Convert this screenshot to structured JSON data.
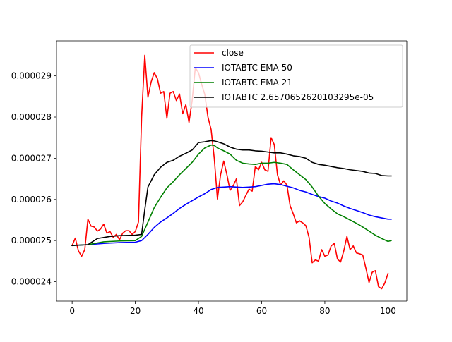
{
  "chart_data": {
    "type": "line",
    "title": "",
    "xlabel": "",
    "ylabel": "",
    "xlim": [
      -4.95,
      105.95
    ],
    "ylim": [
      2.353e-05,
      2.985e-05
    ],
    "grid": false,
    "legend_position": "upper-right",
    "x_ticks": [
      0,
      20,
      40,
      60,
      80,
      100
    ],
    "x_tick_labels": [
      "0",
      "20",
      "40",
      "60",
      "80",
      "100"
    ],
    "y_ticks": [
      2.4e-05,
      2.5e-05,
      2.6e-05,
      2.7e-05,
      2.8e-05,
      2.9e-05
    ],
    "y_tick_labels": [
      "0.000024",
      "0.000025",
      "0.000026",
      "0.000027",
      "0.000028",
      "0.000029"
    ],
    "series": [
      {
        "name": "close",
        "color": "#ff0000",
        "x": [
          0,
          1,
          2,
          3,
          4,
          5,
          6,
          7,
          8,
          9,
          10,
          11,
          12,
          13,
          14,
          15,
          16,
          17,
          18,
          19,
          20,
          21,
          22,
          23,
          24,
          25,
          26,
          27,
          28,
          29,
          30,
          31,
          32,
          33,
          34,
          35,
          36,
          37,
          38,
          39,
          40,
          41,
          42,
          43,
          44,
          45,
          46,
          47,
          48,
          49,
          50,
          51,
          52,
          53,
          54,
          55,
          56,
          57,
          58,
          59,
          60,
          61,
          62,
          63,
          64,
          65,
          66,
          67,
          68,
          69,
          70,
          71,
          72,
          73,
          74,
          75,
          76,
          77,
          78,
          79,
          80,
          81,
          82,
          83,
          84,
          85,
          86,
          87,
          88,
          89,
          90,
          91,
          92,
          93,
          94,
          95,
          96,
          97,
          98,
          99,
          100
        ],
        "values": [
          2.488e-05,
          2.506e-05,
          2.475e-05,
          2.462e-05,
          2.478e-05,
          2.552e-05,
          2.535e-05,
          2.533e-05,
          2.523e-05,
          2.528e-05,
          2.54e-05,
          2.518e-05,
          2.522e-05,
          2.508e-05,
          2.515e-05,
          2.502e-05,
          2.518e-05,
          2.524e-05,
          2.524e-05,
          2.515e-05,
          2.522e-05,
          2.545e-05,
          2.8e-05,
          2.95e-05,
          2.848e-05,
          2.885e-05,
          2.908e-05,
          2.893e-05,
          2.858e-05,
          2.862e-05,
          2.797e-05,
          2.858e-05,
          2.862e-05,
          2.84e-05,
          2.856e-05,
          2.808e-05,
          2.83e-05,
          2.787e-05,
          2.84e-05,
          2.92e-05,
          2.908e-05,
          2.88e-05,
          2.855e-05,
          2.8e-05,
          2.77e-05,
          2.7e-05,
          2.601e-05,
          2.66e-05,
          2.693e-05,
          2.66e-05,
          2.622e-05,
          2.633e-05,
          2.65e-05,
          2.585e-05,
          2.594e-05,
          2.61e-05,
          2.625e-05,
          2.62e-05,
          2.68e-05,
          2.672e-05,
          2.69e-05,
          2.672e-05,
          2.668e-05,
          2.75e-05,
          2.733e-05,
          2.66e-05,
          2.635e-05,
          2.645e-05,
          2.635e-05,
          2.585e-05,
          2.565e-05,
          2.543e-05,
          2.548e-05,
          2.543e-05,
          2.536e-05,
          2.508e-05,
          2.446e-05,
          2.453e-05,
          2.45e-05,
          2.478e-05,
          2.462e-05,
          2.465e-05,
          2.487e-05,
          2.493e-05,
          2.455e-05,
          2.448e-05,
          2.475e-05,
          2.51e-05,
          2.478e-05,
          2.487e-05,
          2.47e-05,
          2.468e-05,
          2.465e-05,
          2.433e-05,
          2.398e-05,
          2.423e-05,
          2.427e-05,
          2.388e-05,
          2.383e-05,
          2.397e-05,
          2.42e-05
        ]
      },
      {
        "name": "IOTABTC EMA 50",
        "color": "#0000ff",
        "x": [
          0,
          5,
          10,
          15,
          20,
          22,
          24,
          26,
          28,
          30,
          32,
          34,
          36,
          38,
          40,
          42,
          44,
          46,
          48,
          50,
          52,
          54,
          56,
          58,
          60,
          62,
          64,
          66,
          68,
          70,
          72,
          74,
          76,
          78,
          80,
          82,
          84,
          86,
          88,
          90,
          92,
          94,
          96,
          98,
          100,
          101
        ],
        "values": [
          2.488e-05,
          2.49e-05,
          2.493e-05,
          2.495e-05,
          2.496e-05,
          2.5e-05,
          2.515e-05,
          2.532e-05,
          2.545e-05,
          2.555e-05,
          2.566e-05,
          2.578e-05,
          2.588e-05,
          2.597e-05,
          2.606e-05,
          2.614e-05,
          2.624e-05,
          2.629e-05,
          2.63e-05,
          2.631e-05,
          2.63e-05,
          2.629e-05,
          2.63e-05,
          2.631e-05,
          2.634e-05,
          2.637e-05,
          2.638e-05,
          2.636e-05,
          2.632e-05,
          2.628e-05,
          2.622e-05,
          2.618e-05,
          2.612e-05,
          2.607e-05,
          2.603e-05,
          2.596e-05,
          2.591e-05,
          2.584e-05,
          2.578e-05,
          2.573e-05,
          2.568e-05,
          2.562e-05,
          2.558e-05,
          2.555e-05,
          2.552e-05,
          2.552e-05
        ]
      },
      {
        "name": "IOTABTC EMA 21",
        "color": "#008000",
        "x": [
          0,
          5,
          10,
          15,
          20,
          22,
          24,
          26,
          28,
          30,
          32,
          34,
          36,
          38,
          40,
          42,
          44,
          45,
          46,
          48,
          50,
          52,
          54,
          56,
          58,
          60,
          62,
          64,
          66,
          68,
          70,
          72,
          74,
          76,
          78,
          80,
          82,
          84,
          86,
          88,
          90,
          92,
          94,
          96,
          98,
          100,
          101
        ],
        "values": [
          2.488e-05,
          2.49e-05,
          2.497e-05,
          2.499e-05,
          2.5e-05,
          2.51e-05,
          2.545e-05,
          2.58e-05,
          2.605e-05,
          2.628e-05,
          2.643e-05,
          2.66e-05,
          2.675e-05,
          2.69e-05,
          2.71e-05,
          2.725e-05,
          2.732e-05,
          2.731e-05,
          2.725e-05,
          2.718e-05,
          2.71e-05,
          2.695e-05,
          2.688e-05,
          2.686e-05,
          2.685e-05,
          2.688e-05,
          2.688e-05,
          2.69e-05,
          2.688e-05,
          2.685e-05,
          2.672e-05,
          2.66e-05,
          2.648e-05,
          2.63e-05,
          2.608e-05,
          2.59e-05,
          2.577e-05,
          2.565e-05,
          2.558e-05,
          2.55e-05,
          2.542e-05,
          2.533e-05,
          2.523e-05,
          2.513e-05,
          2.505e-05,
          2.498e-05,
          2.5e-05
        ]
      },
      {
        "name": "IOTABTC 2.6570652620103295e-05",
        "color": "#000000",
        "x": [
          0,
          5,
          8,
          12,
          15,
          20,
          22,
          23,
          24,
          26,
          28,
          30,
          32,
          34,
          36,
          38,
          40,
          42,
          44,
          45,
          46,
          48,
          50,
          52,
          54,
          56,
          58,
          60,
          62,
          64,
          66,
          68,
          70,
          72,
          74,
          76,
          78,
          80,
          82,
          84,
          86,
          88,
          90,
          92,
          94,
          96,
          98,
          100,
          101
        ],
        "values": [
          2.488e-05,
          2.49e-05,
          2.505e-05,
          2.51e-05,
          2.512e-05,
          2.513e-05,
          2.515e-05,
          2.575e-05,
          2.63e-05,
          2.66e-05,
          2.678e-05,
          2.69e-05,
          2.695e-05,
          2.705e-05,
          2.712e-05,
          2.72e-05,
          2.738e-05,
          2.74e-05,
          2.743e-05,
          2.742e-05,
          2.74e-05,
          2.735e-05,
          2.727e-05,
          2.722e-05,
          2.72e-05,
          2.72e-05,
          2.718e-05,
          2.717e-05,
          2.715e-05,
          2.713e-05,
          2.713e-05,
          2.71e-05,
          2.706e-05,
          2.704e-05,
          2.7e-05,
          2.69e-05,
          2.685e-05,
          2.683e-05,
          2.68e-05,
          2.677e-05,
          2.675e-05,
          2.672e-05,
          2.67e-05,
          2.668e-05,
          2.664e-05,
          2.663e-05,
          2.658e-05,
          2.657e-05,
          2.657e-05
        ]
      }
    ]
  }
}
